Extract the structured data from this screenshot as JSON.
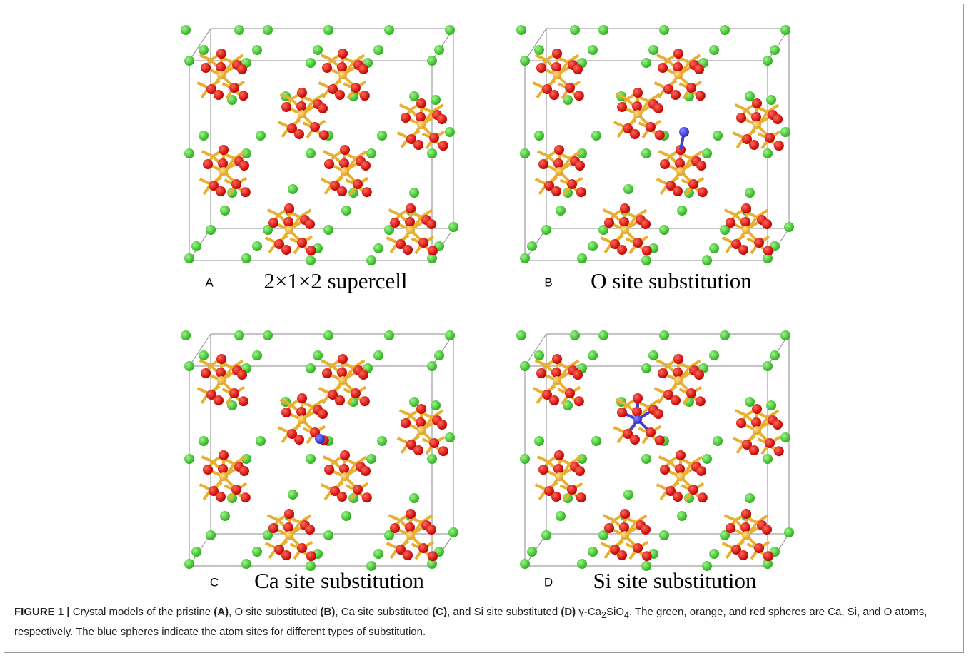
{
  "panels": [
    {
      "letter": "A",
      "title": "2×1×2 supercell"
    },
    {
      "letter": "B",
      "title": "O site substitution"
    },
    {
      "letter": "C",
      "title": "Ca site substitution"
    },
    {
      "letter": "D",
      "title": "Si site substitution"
    }
  ],
  "caption": {
    "segments": [
      "FIGURE 1 |",
      " Crystal models of the pristine ",
      "(A)",
      ", O site substituted ",
      "(B)",
      ", Ca site substituted ",
      "(C)",
      ", and Si site substituted ",
      "(D)",
      " γ-Ca",
      "2",
      "SiO",
      "4",
      ". The green, orange, and red spheres are Ca, Si, and O atoms, respectively. The blue spheres indicate the atom sites for different types of substitution."
    ]
  }
}
